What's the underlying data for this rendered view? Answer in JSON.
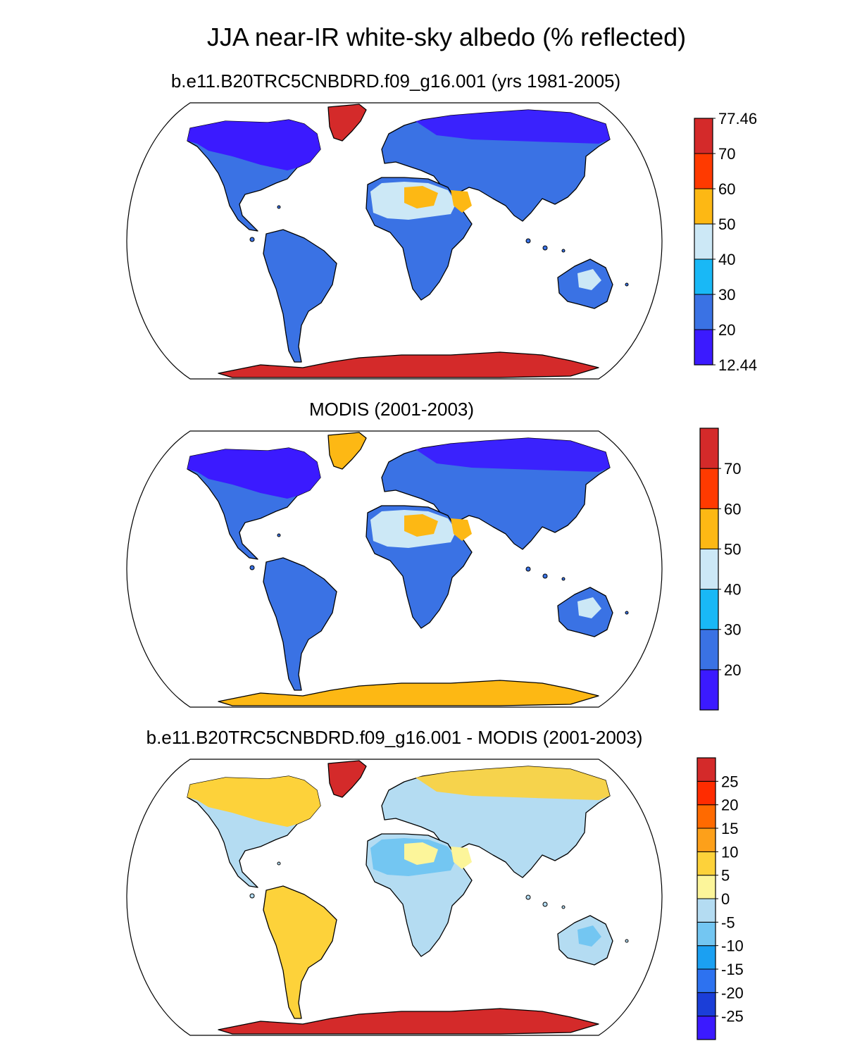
{
  "main_title": "JJA near-IR white-sky albedo (% reflected)",
  "panels": [
    {
      "subtitle": "b.e11.B20TRC5CNBDRD.f09_g16.001 (yrs 1981-2005)",
      "colorbar": {
        "colors": [
          "#3b1aff",
          "#3a72e4",
          "#19b8f6",
          "#cce8f6",
          "#fdb814",
          "#ff3a00",
          "#d42a2a"
        ],
        "labels": [
          "12.44",
          "20",
          "30",
          "40",
          "50",
          "60",
          "70",
          "77.46"
        ],
        "endpoint_labels": true
      },
      "map_colors": {
        "land": "#3a72e4",
        "highlat": "#3b1aff",
        "desert": "#cce8f6",
        "desert_hot": "#fdb814",
        "ice": "#d42a2a",
        "accent": "#ff3a00"
      }
    },
    {
      "subtitle": "MODIS (2001-2003)",
      "colorbar": {
        "colors": [
          "#3b1aff",
          "#3a72e4",
          "#19b8f6",
          "#cce8f6",
          "#fdb814",
          "#ff3a00",
          "#d42a2a"
        ],
        "labels": [
          "20",
          "30",
          "40",
          "50",
          "60",
          "70"
        ],
        "endpoint_labels": false
      },
      "map_colors": {
        "land": "#3a72e4",
        "highlat": "#3b1aff",
        "desert": "#cce8f6",
        "desert_hot": "#fdb814",
        "ice": "#fdb814",
        "accent": "#ff3a00"
      }
    },
    {
      "subtitle": "b.e11.B20TRC5CNBDRD.f09_g16.001 - MODIS (2001-2003)",
      "colorbar": {
        "colors": [
          "#3b1aff",
          "#1b3ed8",
          "#2d72f0",
          "#1ba0f2",
          "#73c6f2",
          "#b4dcf2",
          "#fcf59a",
          "#fdd23a",
          "#fda01a",
          "#ff6a00",
          "#ff2c00",
          "#d42a2a"
        ],
        "labels": [
          "-25",
          "-20",
          "-15",
          "-10",
          "-5",
          "0",
          "5",
          "10",
          "15",
          "20",
          "25"
        ],
        "endpoint_labels": false
      },
      "map_colors": {
        "land": "#b4dcf2",
        "highlat": "#fdd23a",
        "desert": "#73c6f2",
        "desert_hot": "#fcf59a",
        "ice": "#d42a2a",
        "accent": "#ff2c00",
        "south_america": "#fdd23a"
      }
    }
  ]
}
